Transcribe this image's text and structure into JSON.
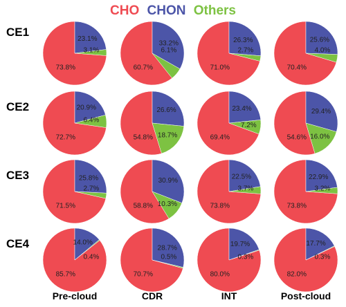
{
  "colors": {
    "CHO": "#ef4b52",
    "CHON": "#4c55a8",
    "Others": "#7dc242"
  },
  "chart_data": {
    "type": "pie",
    "legend": [
      "CHO",
      "CHON",
      "Others"
    ],
    "legend_position": "top-center",
    "rows": [
      "CE1",
      "CE2",
      "CE3",
      "CE4"
    ],
    "columns": [
      "Pre-cloud",
      "CDR",
      "INT",
      "Post-cloud"
    ],
    "values": [
      [
        {
          "CHO": "73.8%",
          "CHON": "23.1%",
          "Others": "3.1%"
        },
        {
          "CHO": "60.7%",
          "CHON": "33.2%",
          "Others": "6.1%"
        },
        {
          "CHO": "71.0%",
          "CHON": "26.3%",
          "Others": "2.7%"
        },
        {
          "CHO": "70.4%",
          "CHON": "25.6%",
          "Others": "4.0%"
        }
      ],
      [
        {
          "CHO": "72.7%",
          "CHON": "20.9%",
          "Others": "6.4%"
        },
        {
          "CHO": "54.8%",
          "CHON": "26.6%",
          "Others": "18.7%"
        },
        {
          "CHO": "69.4%",
          "CHON": "23.4%",
          "Others": "7.2%"
        },
        {
          "CHO": "54.6%",
          "CHON": "29.4%",
          "Others": "16.0%"
        }
      ],
      [
        {
          "CHO": "71.5%",
          "CHON": "25.8%",
          "Others": "2.7%"
        },
        {
          "CHO": "58.8%",
          "CHON": "30.9%",
          "Others": "10.3%"
        },
        {
          "CHO": "73.8%",
          "CHON": "22.5%",
          "Others": "3.7%"
        },
        {
          "CHO": "73.8%",
          "CHON": "22.9%",
          "Others": "3.2%"
        }
      ],
      [
        {
          "CHO": "85.7%",
          "CHON": "14.0%",
          "Others": "0.4%"
        },
        {
          "CHO": "70.7%",
          "CHON": "28.7%",
          "Others": "0.5%"
        },
        {
          "CHO": "80.0%",
          "CHON": "19.7%",
          "Others": "0.3%"
        },
        {
          "CHO": "82.0%",
          "CHON": "17.7%",
          "Others": "0.3%"
        }
      ]
    ]
  }
}
